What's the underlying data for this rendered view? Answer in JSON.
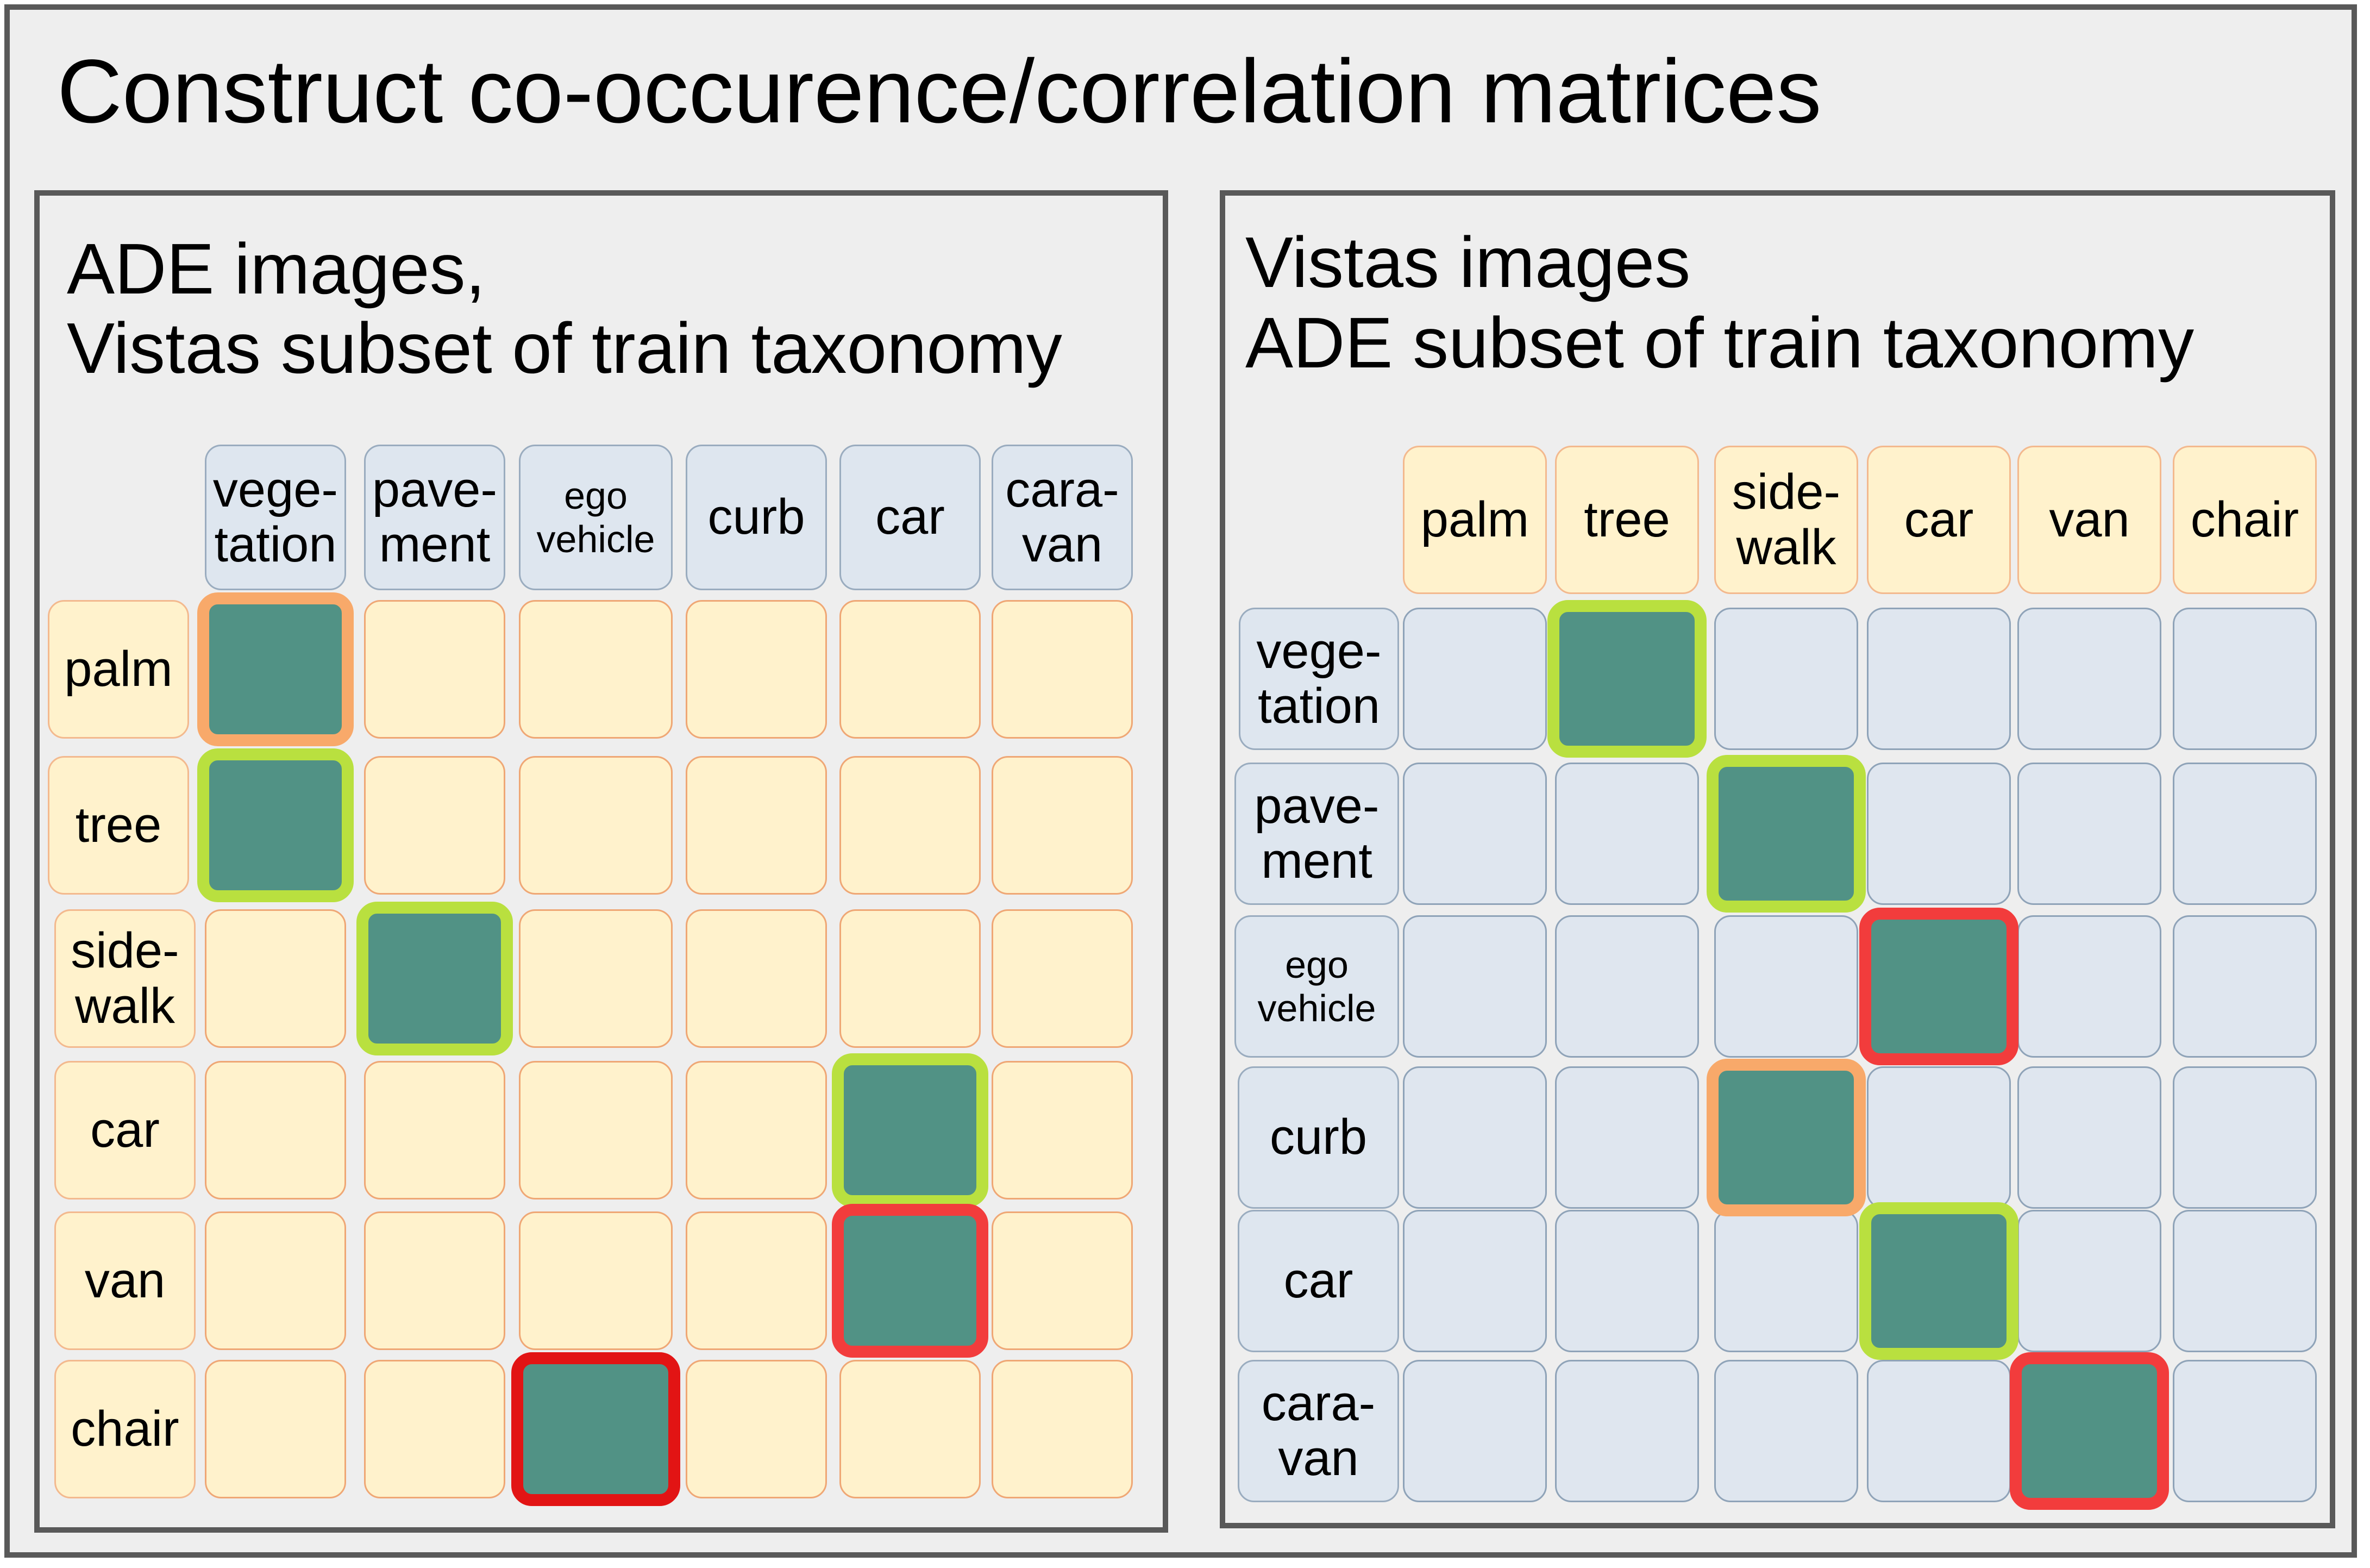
{
  "title": "Construct co-occurence/correlation matrices",
  "left_panel": {
    "title_line1": "ADE images,",
    "title_line2": "Vistas subset of train taxonomy",
    "columns": [
      "vege-\ntation",
      "pave-\nment",
      "ego\nvehicle",
      "curb",
      "car",
      "cara-\nvan"
    ],
    "rows": [
      "palm",
      "tree",
      "side-\nwalk",
      "car",
      "van",
      "chair"
    ],
    "highlights": [
      {
        "row": 0,
        "col": 0,
        "color": "orange"
      },
      {
        "row": 1,
        "col": 0,
        "color": "green"
      },
      {
        "row": 2,
        "col": 1,
        "color": "green"
      },
      {
        "row": 3,
        "col": 4,
        "color": "green"
      },
      {
        "row": 4,
        "col": 4,
        "color": "red"
      },
      {
        "row": 5,
        "col": 2,
        "color": "darkred"
      }
    ]
  },
  "right_panel": {
    "title_line1": "Vistas images",
    "title_line2": "ADE subset of train taxonomy",
    "columns": [
      "palm",
      "tree",
      "side-\nwalk",
      "car",
      "van",
      "chair"
    ],
    "rows": [
      "vege-\ntation",
      "pave-\nment",
      "ego\nvehicle",
      "curb",
      "car",
      "cara-\nvan"
    ],
    "highlights": [
      {
        "row": 0,
        "col": 1,
        "color": "green"
      },
      {
        "row": 1,
        "col": 2,
        "color": "green"
      },
      {
        "row": 2,
        "col": 3,
        "color": "red"
      },
      {
        "row": 3,
        "col": 2,
        "color": "orange"
      },
      {
        "row": 4,
        "col": 3,
        "color": "green"
      },
      {
        "row": 5,
        "col": 4,
        "color": "red"
      }
    ]
  },
  "colors": {
    "cell_fill": "#519285",
    "green": "#b9e03f",
    "orange": "#f8a96a",
    "red": "#f23c3c",
    "darkred": "#e21414",
    "yellow_cell": "#fff2cc",
    "blue_cell": "#dfe6ef"
  }
}
